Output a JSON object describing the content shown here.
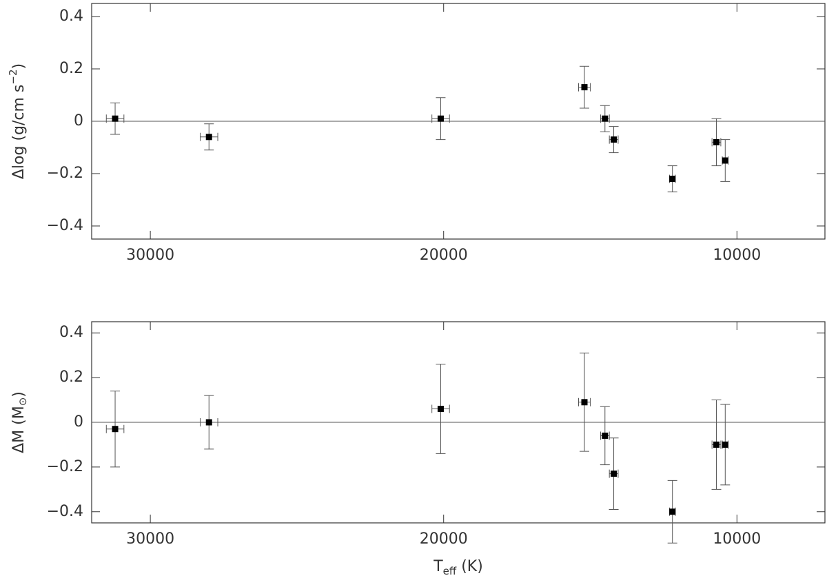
{
  "chart_data": [
    {
      "type": "scatter",
      "color": "#000000",
      "error_color": "#555555",
      "ylabel": [
        "Δlog (g/cm s",
        "−2",
        ")"
      ],
      "x": [
        31200,
        28000,
        20100,
        15200,
        14500,
        14200,
        12200,
        10700,
        10400
      ],
      "x_err": [
        300,
        300,
        300,
        200,
        150,
        150,
        100,
        150,
        100
      ],
      "values": [
        0.01,
        -0.06,
        0.01,
        0.13,
        0.01,
        -0.07,
        -0.22,
        -0.08,
        -0.15
      ],
      "y_err": [
        0.06,
        0.05,
        0.08,
        0.08,
        0.05,
        0.05,
        0.05,
        0.09,
        0.08
      ],
      "reference_line": 0,
      "xlim": [
        32000,
        7000
      ],
      "xticks": [
        30000,
        20000,
        10000
      ],
      "ylim": [
        -0.45,
        0.45
      ],
      "yticks": [
        {
          "value": -0.4,
          "label": "−0.4"
        },
        {
          "value": -0.2,
          "label": "−0.2"
        },
        0,
        0.2,
        0.4
      ]
    },
    {
      "type": "scatter",
      "color": "#000000",
      "error_color": "#555555",
      "ylabel": [
        "ΔM (M",
        "⊙",
        ")"
      ],
      "xlabel": [
        "T",
        "eff",
        " (K)"
      ],
      "x": [
        31200,
        28000,
        20100,
        15200,
        14500,
        14200,
        12200,
        10700,
        10400
      ],
      "x_err": [
        300,
        300,
        300,
        200,
        150,
        150,
        100,
        150,
        100
      ],
      "values": [
        -0.03,
        0.0,
        0.06,
        0.09,
        -0.06,
        -0.23,
        -0.4,
        -0.1,
        -0.1
      ],
      "y_err": [
        0.17,
        0.12,
        0.2,
        0.22,
        0.13,
        0.16,
        0.14,
        0.2,
        0.18
      ],
      "reference_line": 0,
      "xlim": [
        32000,
        7000
      ],
      "xticks": [
        30000,
        20000,
        10000
      ],
      "ylim": [
        -0.45,
        0.45
      ],
      "yticks": [
        {
          "value": -0.4,
          "label": "−0.4"
        },
        {
          "value": -0.2,
          "label": "−0.2"
        },
        0,
        0.2,
        0.4
      ]
    }
  ]
}
